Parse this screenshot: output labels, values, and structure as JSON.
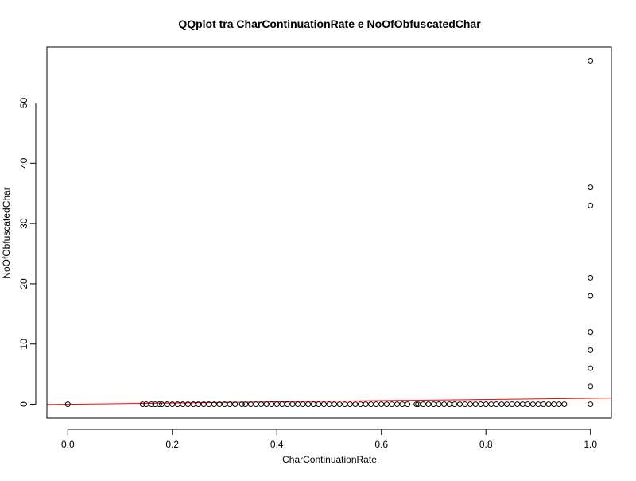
{
  "chart_data": {
    "type": "scatter",
    "title": "QQplot tra CharContinuationRate e NoOfObfuscatedChar",
    "xlabel": "CharContinuationRate",
    "ylabel": "NoOfObfuscatedChar",
    "xlim": [
      -0.04,
      1.04
    ],
    "ylim": [
      -2.3,
      59.3
    ],
    "x_ticks": [
      0.0,
      0.2,
      0.4,
      0.6,
      0.8,
      1.0
    ],
    "x_tick_labels": [
      "0.0",
      "0.2",
      "0.4",
      "0.6",
      "0.8",
      "1.0"
    ],
    "y_ticks": [
      0,
      10,
      20,
      30,
      40,
      50
    ],
    "y_tick_labels": [
      "0",
      "10",
      "20",
      "30",
      "40",
      "50"
    ],
    "grid": false,
    "legend": "none",
    "point_color": "#000000",
    "line_color": "#ff0000",
    "series": [
      {
        "values": [
          [
            0.0,
            0
          ],
          [
            0.143,
            0
          ],
          [
            0.15,
            0
          ],
          [
            0.16,
            0
          ],
          [
            0.167,
            0
          ],
          [
            0.175,
            0
          ],
          [
            0.18,
            0
          ],
          [
            0.19,
            0
          ],
          [
            0.2,
            0
          ],
          [
            0.21,
            0
          ],
          [
            0.22,
            0
          ],
          [
            0.23,
            0
          ],
          [
            0.24,
            0
          ],
          [
            0.25,
            0
          ],
          [
            0.26,
            0
          ],
          [
            0.27,
            0
          ],
          [
            0.28,
            0
          ],
          [
            0.29,
            0
          ],
          [
            0.3,
            0
          ],
          [
            0.31,
            0
          ],
          [
            0.32,
            0
          ],
          [
            0.333,
            0
          ],
          [
            0.34,
            0
          ],
          [
            0.35,
            0
          ],
          [
            0.36,
            0
          ],
          [
            0.37,
            0
          ],
          [
            0.38,
            0
          ],
          [
            0.39,
            0
          ],
          [
            0.4,
            0
          ],
          [
            0.41,
            0
          ],
          [
            0.42,
            0
          ],
          [
            0.43,
            0
          ],
          [
            0.44,
            0
          ],
          [
            0.45,
            0
          ],
          [
            0.46,
            0
          ],
          [
            0.47,
            0
          ],
          [
            0.48,
            0
          ],
          [
            0.49,
            0
          ],
          [
            0.5,
            0
          ],
          [
            0.51,
            0
          ],
          [
            0.52,
            0
          ],
          [
            0.53,
            0
          ],
          [
            0.54,
            0
          ],
          [
            0.55,
            0
          ],
          [
            0.56,
            0
          ],
          [
            0.57,
            0
          ],
          [
            0.58,
            0
          ],
          [
            0.59,
            0
          ],
          [
            0.6,
            0
          ],
          [
            0.61,
            0
          ],
          [
            0.62,
            0
          ],
          [
            0.63,
            0
          ],
          [
            0.64,
            0
          ],
          [
            0.65,
            0
          ],
          [
            0.667,
            0
          ],
          [
            0.67,
            0
          ],
          [
            0.68,
            0
          ],
          [
            0.69,
            0
          ],
          [
            0.7,
            0
          ],
          [
            0.71,
            0
          ],
          [
            0.72,
            0
          ],
          [
            0.73,
            0
          ],
          [
            0.74,
            0
          ],
          [
            0.75,
            0
          ],
          [
            0.76,
            0
          ],
          [
            0.77,
            0
          ],
          [
            0.78,
            0
          ],
          [
            0.79,
            0
          ],
          [
            0.8,
            0
          ],
          [
            0.81,
            0
          ],
          [
            0.82,
            0
          ],
          [
            0.83,
            0
          ],
          [
            0.84,
            0
          ],
          [
            0.85,
            0
          ],
          [
            0.86,
            0
          ],
          [
            0.87,
            0
          ],
          [
            0.88,
            0
          ],
          [
            0.89,
            0
          ],
          [
            0.9,
            0
          ],
          [
            0.91,
            0
          ],
          [
            0.92,
            0
          ],
          [
            0.93,
            0
          ],
          [
            0.94,
            0
          ],
          [
            0.95,
            0
          ],
          [
            1.0,
            0
          ],
          [
            1.0,
            3
          ],
          [
            1.0,
            6
          ],
          [
            1.0,
            9
          ],
          [
            1.0,
            12
          ],
          [
            1.0,
            18
          ],
          [
            1.0,
            21
          ],
          [
            1.0,
            33
          ],
          [
            1.0,
            36
          ],
          [
            1.0,
            57
          ]
        ]
      }
    ],
    "reference_line": {
      "intercept": 0.0,
      "slope": 1.0
    }
  }
}
